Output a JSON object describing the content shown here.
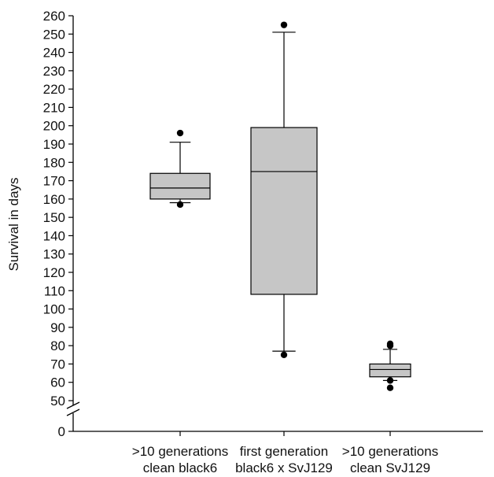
{
  "chart_data": {
    "type": "box",
    "ylabel": "Survival in days",
    "yticks": [
      0,
      50,
      60,
      70,
      80,
      90,
      100,
      110,
      120,
      130,
      140,
      150,
      160,
      170,
      180,
      190,
      200,
      210,
      220,
      230,
      240,
      250,
      260
    ],
    "ylim": [
      0,
      260
    ],
    "axis_break": [
      0,
      50
    ],
    "grid": false,
    "box_color": "#c6c6c6",
    "groups": [
      {
        "label_lines": [
          ">10 generations",
          "clean black6"
        ],
        "whisker_low": 158,
        "q1": 160,
        "median": 166,
        "q3": 174,
        "whisker_high": 191,
        "outliers": [
          196,
          157
        ]
      },
      {
        "label_lines": [
          "first generation",
          "black6 x SvJ129"
        ],
        "whisker_low": 77,
        "q1": 108,
        "median": 175,
        "q3": 199,
        "whisker_high": 251,
        "outliers": [
          255,
          75
        ]
      },
      {
        "label_lines": [
          ">10 generations",
          "clean SvJ129"
        ],
        "whisker_low": 61,
        "q1": 63,
        "median": 67,
        "q3": 70,
        "whisker_high": 78,
        "outliers": [
          80,
          81,
          61,
          57
        ]
      }
    ]
  }
}
